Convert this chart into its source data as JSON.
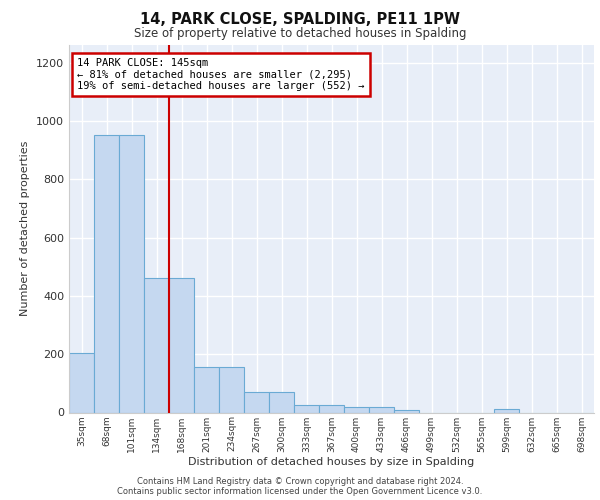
{
  "title": "14, PARK CLOSE, SPALDING, PE11 1PW",
  "subtitle": "Size of property relative to detached houses in Spalding",
  "xlabel": "Distribution of detached houses by size in Spalding",
  "ylabel": "Number of detached properties",
  "bins": [
    "35sqm",
    "68sqm",
    "101sqm",
    "134sqm",
    "168sqm",
    "201sqm",
    "234sqm",
    "267sqm",
    "300sqm",
    "333sqm",
    "367sqm",
    "400sqm",
    "433sqm",
    "466sqm",
    "499sqm",
    "532sqm",
    "565sqm",
    "599sqm",
    "632sqm",
    "665sqm",
    "698sqm"
  ],
  "values": [
    203,
    950,
    950,
    462,
    462,
    155,
    155,
    70,
    70,
    25,
    25,
    18,
    18,
    10,
    0,
    0,
    0,
    12,
    0,
    0,
    0
  ],
  "bar_color": "#c5d8f0",
  "bar_edge_color": "#6aaad4",
  "line_color": "#cc0000",
  "annotation_text": "14 PARK CLOSE: 145sqm\n← 81% of detached houses are smaller (2,295)\n19% of semi-detached houses are larger (552) →",
  "annotation_box_color": "#ffffff",
  "annotation_box_edge": "#cc0000",
  "bg_color": "#e8eef8",
  "grid_color": "#ffffff",
  "footer": "Contains HM Land Registry data © Crown copyright and database right 2024.\nContains public sector information licensed under the Open Government Licence v3.0.",
  "ylim": [
    0,
    1260
  ],
  "yticks": [
    0,
    200,
    400,
    600,
    800,
    1000,
    1200
  ]
}
